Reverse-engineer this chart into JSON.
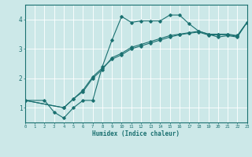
{
  "title": "",
  "xlabel": "Humidex (Indice chaleur)",
  "ylabel": "",
  "xlim": [
    0,
    23
  ],
  "ylim": [
    0.5,
    4.5
  ],
  "xticks": [
    0,
    1,
    2,
    3,
    4,
    5,
    6,
    7,
    8,
    9,
    10,
    11,
    12,
    13,
    14,
    15,
    16,
    17,
    18,
    19,
    20,
    21,
    22,
    23
  ],
  "yticks": [
    1,
    2,
    3,
    4
  ],
  "background_color": "#cce8e8",
  "grid_color": "#ffffff",
  "line_color": "#1a7070",
  "figsize": [
    3.2,
    2.0
  ],
  "dpi": 100,
  "series": [
    {
      "x": [
        0,
        2,
        3,
        4,
        5,
        6,
        7,
        8,
        9,
        10,
        11,
        12,
        13,
        14,
        15,
        16,
        17,
        18,
        19,
        20,
        21,
        22,
        23
      ],
      "y": [
        1.25,
        1.25,
        0.85,
        0.65,
        1.0,
        1.25,
        1.25,
        2.4,
        3.3,
        4.1,
        3.9,
        3.95,
        3.95,
        3.95,
        4.15,
        4.15,
        3.85,
        3.6,
        3.5,
        3.4,
        3.45,
        3.4,
        3.9
      ]
    },
    {
      "x": [
        0,
        4,
        5,
        6,
        7,
        8,
        9,
        10,
        11,
        12,
        13,
        14,
        15,
        16,
        17,
        18,
        19,
        20,
        21,
        22,
        23
      ],
      "y": [
        1.25,
        1.0,
        1.3,
        1.55,
        2.0,
        2.3,
        2.7,
        2.85,
        3.05,
        3.15,
        3.25,
        3.35,
        3.45,
        3.5,
        3.55,
        3.6,
        3.5,
        3.5,
        3.5,
        3.45,
        3.9
      ]
    },
    {
      "x": [
        0,
        4,
        5,
        6,
        7,
        8,
        9,
        10,
        11,
        12,
        13,
        14,
        15,
        16,
        17,
        18,
        19,
        20,
        21,
        22,
        23
      ],
      "y": [
        1.25,
        1.0,
        1.3,
        1.6,
        2.05,
        2.35,
        2.65,
        2.8,
        3.0,
        3.1,
        3.2,
        3.3,
        3.4,
        3.48,
        3.53,
        3.57,
        3.47,
        3.48,
        3.48,
        3.43,
        3.9
      ]
    }
  ]
}
